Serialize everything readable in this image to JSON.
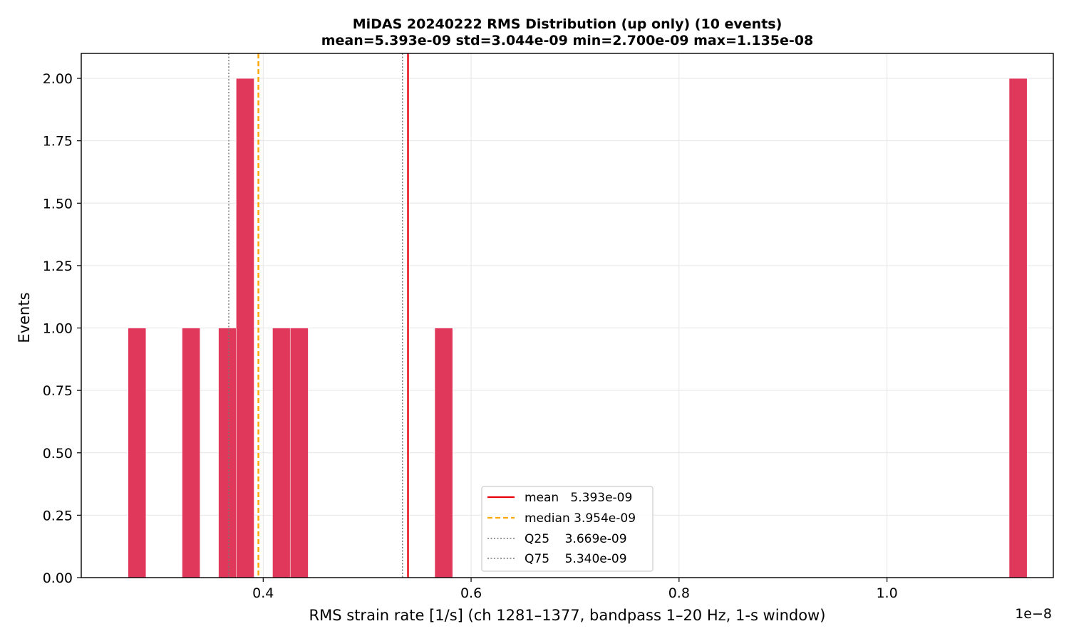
{
  "chart_data": {
    "type": "bar",
    "title": "MiDAS 20240222  RMS Distribution  (up only)  (10 events)",
    "subtitle": "mean=5.393e-09  std=3.044e-09  min=2.700e-09  max=1.135e-08",
    "xlabel": "RMS strain rate [1/s]  (ch 1281–1377, bandpass 1–20 Hz, 1-s window)",
    "ylabel": "Events",
    "x_offset_label": "1e−8",
    "xlim": [
      0.225,
      1.16
    ],
    "ylim": [
      0,
      2.1
    ],
    "xticks": [
      0.4,
      0.6,
      0.8,
      1.0
    ],
    "xtick_labels": [
      "0.4",
      "0.6",
      "0.8",
      "1.0"
    ],
    "yticks": [
      0,
      0.25,
      0.5,
      0.75,
      1.0,
      1.25,
      1.5,
      1.75,
      2.0
    ],
    "ytick_labels": [
      "0.00",
      "0.25",
      "0.50",
      "0.75",
      "1.00",
      "1.25",
      "1.50",
      "1.75",
      "2.00"
    ],
    "grid": true,
    "bar_color": "#e0385b",
    "bin_width": 0.0173,
    "bins": [
      {
        "x0": 0.27,
        "count": 1
      },
      {
        "x0": 0.322,
        "count": 1
      },
      {
        "x0": 0.357,
        "count": 1
      },
      {
        "x0": 0.374,
        "count": 2
      },
      {
        "x0": 0.409,
        "count": 1
      },
      {
        "x0": 0.426,
        "count": 1
      },
      {
        "x0": 0.565,
        "count": 1
      },
      {
        "x0": 1.1175,
        "count": 2
      }
    ],
    "vlines": [
      {
        "key": "mean",
        "value": 0.5393,
        "color": "#e8000b",
        "style": "solid"
      },
      {
        "key": "median",
        "value": 0.3954,
        "color": "#ffa500",
        "style": "dashed"
      },
      {
        "key": "q25",
        "value": 0.3669,
        "color": "#777777",
        "style": "dotted"
      },
      {
        "key": "q75",
        "value": 0.534,
        "color": "#777777",
        "style": "dotted"
      }
    ],
    "legend": {
      "position": "lower-center",
      "entries": [
        {
          "label": "mean   5.393e-09",
          "color": "#e8000b",
          "style": "solid"
        },
        {
          "label": "median 3.954e-09",
          "color": "#ffa500",
          "style": "dashed"
        },
        {
          "label": "Q25    3.669e-09",
          "color": "#777777",
          "style": "dotted"
        },
        {
          "label": "Q75    5.340e-09",
          "color": "#777777",
          "style": "dotted"
        }
      ]
    }
  }
}
